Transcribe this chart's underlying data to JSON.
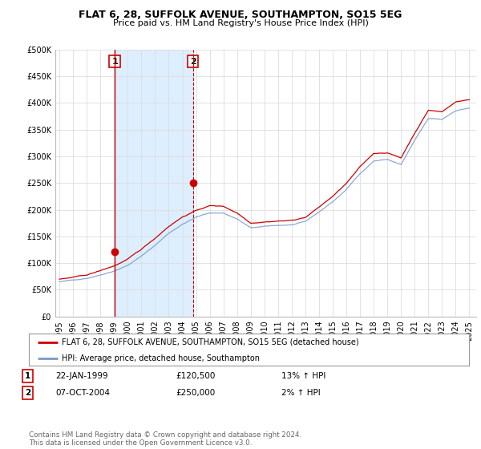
{
  "title": "FLAT 6, 28, SUFFOLK AVENUE, SOUTHAMPTON, SO15 5EG",
  "subtitle": "Price paid vs. HM Land Registry's House Price Index (HPI)",
  "background_color": "#ffffff",
  "plot_bg_color": "#ffffff",
  "grid_color": "#dddddd",
  "shade_color": "#ddeeff",
  "line1_color": "#cc0000",
  "line2_color": "#7799cc",
  "ylim": [
    0,
    500000
  ],
  "yticks": [
    0,
    50000,
    100000,
    150000,
    200000,
    250000,
    300000,
    350000,
    400000,
    450000,
    500000
  ],
  "legend_label1": "FLAT 6, 28, SUFFOLK AVENUE, SOUTHAMPTON, SO15 5EG (detached house)",
  "legend_label2": "HPI: Average price, detached house, Southampton",
  "marker1_x": 1999.05,
  "marker1_value": 120500,
  "marker2_x": 2004.77,
  "marker2_value": 250000,
  "table_rows": [
    {
      "num": "1",
      "date": "22-JAN-1999",
      "price": "£120,500",
      "hpi": "13% ↑ HPI"
    },
    {
      "num": "2",
      "date": "07-OCT-2004",
      "price": "£250,000",
      "hpi": "2% ↑ HPI"
    }
  ],
  "footer": "Contains HM Land Registry data © Crown copyright and database right 2024.\nThis data is licensed under the Open Government Licence v3.0.",
  "xlim_left": 1994.7,
  "xlim_right": 2025.5
}
